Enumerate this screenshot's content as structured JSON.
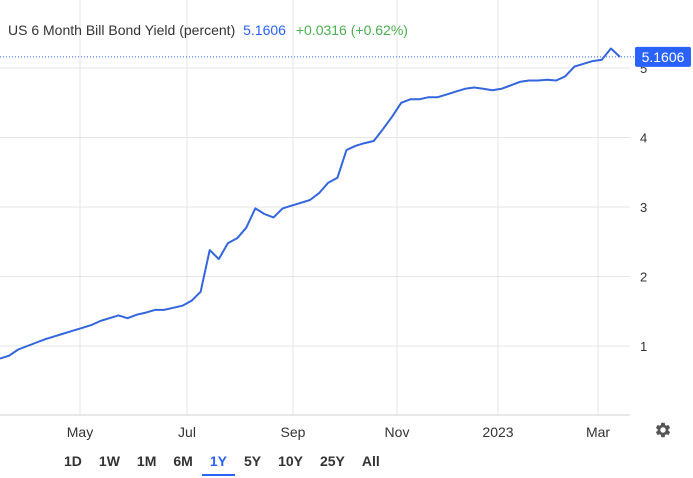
{
  "header": {
    "title": "US 6 Month Bill Bond Yield (percent)",
    "price": "5.1606",
    "change": "+0.0316 (+0.62%)"
  },
  "price_label": "5.1606",
  "periods": [
    {
      "label": "1D",
      "active": false
    },
    {
      "label": "1W",
      "active": false
    },
    {
      "label": "1M",
      "active": false
    },
    {
      "label": "6M",
      "active": false
    },
    {
      "label": "1Y",
      "active": true
    },
    {
      "label": "5Y",
      "active": false
    },
    {
      "label": "10Y",
      "active": false
    },
    {
      "label": "25Y",
      "active": false
    },
    {
      "label": "All",
      "active": false
    }
  ],
  "icons": {
    "settings": "gear-icon"
  },
  "colors": {
    "line": "#3366dd",
    "accent": "#2962ff",
    "change": "#4caf50"
  },
  "chart_data": {
    "type": "line",
    "title": "US 6 Month Bill Bond Yield (percent)",
    "y_ticks": [
      1,
      2,
      3,
      4,
      5
    ],
    "x_ticks": [
      "May",
      "Jul",
      "Sep",
      "Nov",
      "2023",
      "Mar"
    ],
    "ylim": [
      0.4,
      5.3
    ],
    "grid": true,
    "last_value": 5.1606,
    "series": [
      {
        "values": [
          0.82,
          0.86,
          0.95,
          1.0,
          1.05,
          1.1,
          1.14,
          1.18,
          1.22,
          1.26,
          1.3,
          1.36,
          1.4,
          1.44,
          1.4,
          1.45,
          1.48,
          1.52,
          1.52,
          1.55,
          1.58,
          1.65,
          1.78,
          2.38,
          2.25,
          2.48,
          2.55,
          2.7,
          2.98,
          2.9,
          2.85,
          2.98,
          3.02,
          3.06,
          3.1,
          3.2,
          3.35,
          3.42,
          3.82,
          3.88,
          3.92,
          3.95,
          4.12,
          4.3,
          4.5,
          4.55,
          4.55,
          4.58,
          4.58,
          4.62,
          4.66,
          4.7,
          4.72,
          4.7,
          4.68,
          4.7,
          4.75,
          4.8,
          4.82,
          4.82,
          4.83,
          4.82,
          4.88,
          5.02,
          5.06,
          5.1,
          5.12,
          5.28,
          5.16
        ]
      }
    ]
  }
}
